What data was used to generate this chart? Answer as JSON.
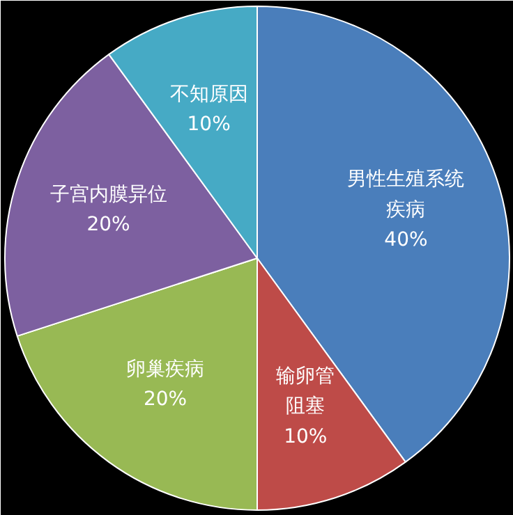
{
  "chart_data": {
    "type": "pie",
    "categories": [
      "男性生殖系统疾病",
      "输卵管阻塞",
      "卵巢疾病",
      "子宫内膜异位",
      "不知原因"
    ],
    "values": [
      40,
      10,
      20,
      20,
      10
    ],
    "value_labels": [
      "40%",
      "10%",
      "20%",
      "20%",
      "10%"
    ],
    "colors": [
      "#4a7ebb",
      "#be4b48",
      "#98b954",
      "#7d60a0",
      "#46aac5"
    ]
  }
}
